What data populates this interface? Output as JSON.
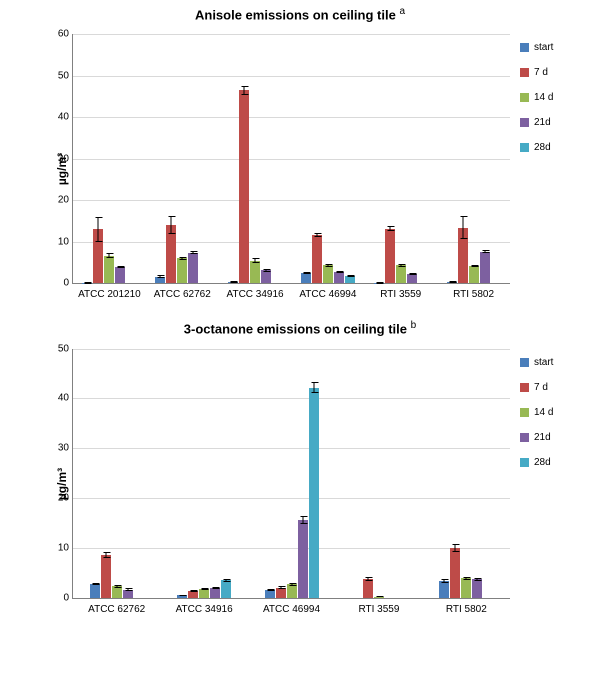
{
  "colors": {
    "start": "#4a7ebb",
    "d7": "#be4b48",
    "d14": "#98b954",
    "d21": "#7d60a0",
    "d28": "#46aac5",
    "grid": "#d9d9d9",
    "axis": "#808080",
    "bg": "#ffffff",
    "err": "#000000"
  },
  "legend": [
    {
      "key": "start",
      "label": "start"
    },
    {
      "key": "d7",
      "label": "7 d"
    },
    {
      "key": "d14",
      "label": "14 d"
    },
    {
      "key": "d21",
      "label": "21d"
    },
    {
      "key": "d28",
      "label": "28d"
    }
  ],
  "charts": [
    {
      "id": "anisole",
      "title": "Anisole emissions on ceiling tile",
      "title_sup": "a",
      "ylabel": "µg/m³",
      "ylim": [
        0,
        60
      ],
      "ytick_step": 10,
      "categories": [
        "ATCC 201210",
        "ATCC 62762",
        "ATCC 34916",
        "ATCC 46994",
        "RTI 3559",
        "RTI 5802"
      ],
      "series": [
        "start",
        "d7",
        "d14",
        "d21",
        "d28"
      ],
      "values": [
        [
          0.2,
          13.0,
          6.7,
          4.0,
          0.0
        ],
        [
          1.6,
          14.1,
          6.0,
          7.4,
          0.0
        ],
        [
          0.3,
          46.5,
          5.5,
          3.1,
          0.0
        ],
        [
          2.5,
          11.7,
          4.3,
          2.7,
          1.8
        ],
        [
          0.2,
          13.2,
          4.3,
          2.2,
          0.0
        ],
        [
          0.3,
          13.4,
          4.2,
          7.6,
          0.0
        ]
      ],
      "errors": [
        [
          0.0,
          3.0,
          0.5,
          0.3,
          0.0
        ],
        [
          0.3,
          2.2,
          0.4,
          0.3,
          0.0
        ],
        [
          0.0,
          1.0,
          0.5,
          0.4,
          0.0
        ],
        [
          0.2,
          0.5,
          0.3,
          0.3,
          0.3
        ],
        [
          0.0,
          0.7,
          0.3,
          0.3,
          0.0
        ],
        [
          0.0,
          2.8,
          0.3,
          0.4,
          0.0
        ]
      ]
    },
    {
      "id": "octanone",
      "title": "3-octanone emissions on ceiling tile",
      "title_sup": "b",
      "ylabel": "µg/m³",
      "ylim": [
        0,
        50
      ],
      "ytick_step": 10,
      "categories": [
        "ATCC 62762",
        "ATCC 34916",
        "ATCC 46994",
        "RTI 3559",
        "RTI 5802"
      ],
      "series": [
        "start",
        "d7",
        "d14",
        "d21",
        "d28"
      ],
      "values": [
        [
          2.8,
          8.6,
          2.3,
          1.6,
          0.0
        ],
        [
          0.5,
          1.4,
          1.8,
          2.0,
          3.5
        ],
        [
          1.6,
          2.0,
          2.7,
          15.6,
          42.2
        ],
        [
          0.0,
          3.8,
          0.2,
          0.0,
          0.0
        ],
        [
          3.3,
          10.0,
          3.9,
          3.7,
          0.0
        ]
      ],
      "errors": [
        [
          0.2,
          0.6,
          0.3,
          0.3,
          0.0
        ],
        [
          0.1,
          0.2,
          0.2,
          0.2,
          0.3
        ],
        [
          0.2,
          0.3,
          0.3,
          0.8,
          1.2
        ],
        [
          0.0,
          0.4,
          0.1,
          0.0,
          0.0
        ],
        [
          0.4,
          0.8,
          0.3,
          0.3,
          0.0
        ]
      ]
    }
  ]
}
